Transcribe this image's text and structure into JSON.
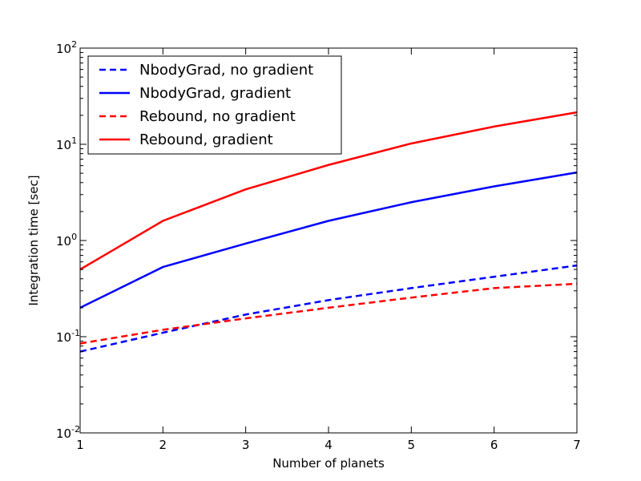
{
  "chart_data": {
    "type": "line",
    "xlabel": "Number of planets",
    "ylabel": "Integration time [sec]",
    "xlim": [
      1,
      7
    ],
    "ylim": [
      0.01,
      100
    ],
    "yscale": "log",
    "x": [
      1,
      2,
      3,
      4,
      5,
      6,
      7
    ],
    "x_ticks": [
      "1",
      "2",
      "3",
      "4",
      "5",
      "6",
      "7"
    ],
    "y_ticks": [
      {
        "value": 0.01,
        "base": "10",
        "exp": "-2"
      },
      {
        "value": 0.1,
        "base": "10",
        "exp": "-1"
      },
      {
        "value": 1,
        "base": "10",
        "exp": "0"
      },
      {
        "value": 10,
        "base": "10",
        "exp": "1"
      },
      {
        "value": 100,
        "base": "10",
        "exp": "2"
      }
    ],
    "grid": false,
    "legend_position": "top-left",
    "series": [
      {
        "name": "NbodyGrad, no gradient",
        "color": "#0000ff",
        "style": "dashed",
        "values": [
          0.07,
          0.11,
          0.17,
          0.24,
          0.32,
          0.42,
          0.55
        ]
      },
      {
        "name": "NbodyGrad, gradient",
        "color": "#0000ff",
        "style": "solid",
        "values": [
          0.2,
          0.53,
          0.93,
          1.6,
          2.5,
          3.65,
          5.1
        ]
      },
      {
        "name": "Rebound, no gradient",
        "color": "#ff0000",
        "style": "dashed",
        "values": [
          0.085,
          0.118,
          0.155,
          0.2,
          0.255,
          0.32,
          0.355
        ]
      },
      {
        "name": "Rebound, gradient",
        "color": "#ff0000",
        "style": "solid",
        "values": [
          0.5,
          1.6,
          3.4,
          6.1,
          10.2,
          15.3,
          21.5
        ]
      }
    ]
  }
}
